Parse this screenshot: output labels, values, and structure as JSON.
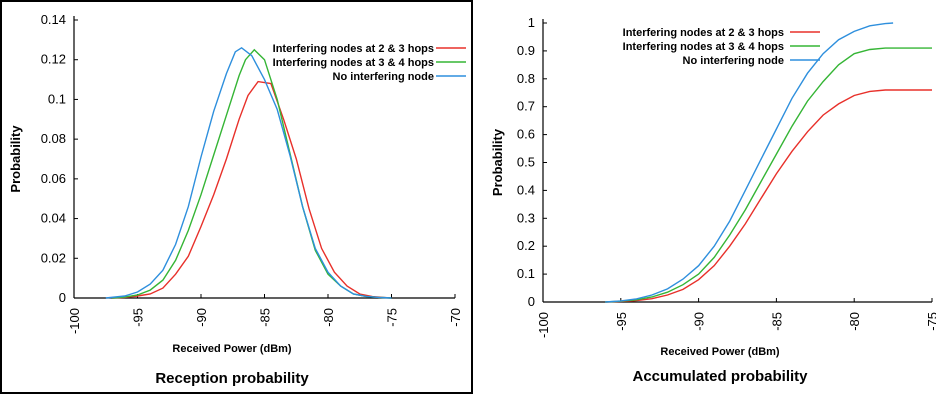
{
  "chart_data": [
    {
      "type": "line",
      "title": "",
      "caption": "Reception probability",
      "xlabel": "Received Power (dBm)",
      "ylabel": "Probability",
      "xlim": [
        -100,
        -70
      ],
      "ylim": [
        0,
        0.14
      ],
      "xticks": [
        -100,
        -95,
        -90,
        -85,
        -80,
        -75,
        -70
      ],
      "yticks": [
        0,
        0.02,
        0.04,
        0.06,
        0.08,
        0.1,
        0.12,
        0.14
      ],
      "ytick_labels": [
        "0",
        "0.02",
        "0.04",
        "0.06",
        "0.08",
        "0.1",
        "0.12",
        "0.14"
      ],
      "legend_position": "top-right",
      "grid": false,
      "series": [
        {
          "name": "Interfering nodes at 2 & 3 hops",
          "color": "#e8302a",
          "x": [
            -97,
            -96,
            -95,
            -94,
            -93,
            -92,
            -91,
            -90,
            -89,
            -88,
            -87,
            -86.3,
            -85.5,
            -84.5,
            -83.5,
            -82.5,
            -81.5,
            -80.5,
            -79.5,
            -78.5,
            -77.5,
            -76.5,
            -75.5,
            -75
          ],
          "y": [
            0,
            0.0003,
            0.001,
            0.002,
            0.005,
            0.012,
            0.021,
            0.036,
            0.052,
            0.07,
            0.09,
            0.102,
            0.109,
            0.108,
            0.09,
            0.07,
            0.045,
            0.025,
            0.013,
            0.006,
            0.002,
            0.0007,
            0.0002,
            0
          ]
        },
        {
          "name": "Interfering nodes at 3 & 4 hops",
          "color": "#35b535",
          "x": [
            -97,
            -96,
            -95,
            -94,
            -93,
            -92,
            -91,
            -90,
            -89,
            -88,
            -87,
            -86.5,
            -85.8,
            -85,
            -84,
            -83,
            -82,
            -81,
            -80,
            -79,
            -78,
            -77,
            -76,
            -75
          ],
          "y": [
            0,
            0.0005,
            0.0015,
            0.004,
            0.009,
            0.019,
            0.034,
            0.052,
            0.072,
            0.092,
            0.112,
            0.12,
            0.125,
            0.12,
            0.1,
            0.073,
            0.046,
            0.024,
            0.012,
            0.006,
            0.002,
            0.0008,
            0.0003,
            0
          ]
        },
        {
          "name": "No interfering node",
          "color": "#2e8fdd",
          "x": [
            -97.5,
            -96,
            -95,
            -94,
            -93,
            -92,
            -91,
            -90,
            -89,
            -88,
            -87.3,
            -86.8,
            -86,
            -85,
            -84,
            -83,
            -82,
            -81,
            -80,
            -79,
            -78,
            -77,
            -76,
            -75
          ],
          "y": [
            0,
            0.001,
            0.003,
            0.007,
            0.014,
            0.027,
            0.046,
            0.071,
            0.094,
            0.113,
            0.124,
            0.126,
            0.122,
            0.11,
            0.095,
            0.072,
            0.046,
            0.025,
            0.013,
            0.006,
            0.002,
            0.0008,
            0.0003,
            0
          ]
        }
      ]
    },
    {
      "type": "line",
      "title": "",
      "caption": "Accumulated probability",
      "xlabel": "Received Power (dBm)",
      "ylabel": "Probability",
      "xlim": [
        -100,
        -75
      ],
      "ylim": [
        0,
        1
      ],
      "xticks": [
        -100,
        -95,
        -90,
        -85,
        -80,
        -75
      ],
      "yticks": [
        0,
        0.1,
        0.2,
        0.3,
        0.4,
        0.5,
        0.6,
        0.7,
        0.8,
        0.9,
        1
      ],
      "ytick_labels": [
        "0",
        "0.1",
        "0.2",
        "0.3",
        "0.4",
        "0.5",
        "0.6",
        "0.7",
        "0.8",
        "0.9",
        "1"
      ],
      "legend_position": "top-left",
      "grid": false,
      "series": [
        {
          "name": "Interfering nodes at 2 & 3 hops",
          "color": "#e8302a",
          "x": [
            -96,
            -95,
            -94,
            -93,
            -92,
            -91,
            -90,
            -89,
            -88,
            -87,
            -86,
            -85,
            -84,
            -83,
            -82,
            -81,
            -80,
            -79,
            -78,
            -77,
            -76,
            -75
          ],
          "y": [
            0,
            0.002,
            0.005,
            0.012,
            0.025,
            0.045,
            0.08,
            0.13,
            0.2,
            0.28,
            0.37,
            0.46,
            0.54,
            0.61,
            0.67,
            0.71,
            0.74,
            0.755,
            0.76,
            0.76,
            0.76,
            0.76
          ]
        },
        {
          "name": "Interfering nodes at 3 & 4 hops",
          "color": "#35b535",
          "x": [
            -96,
            -95,
            -94,
            -93,
            -92,
            -91,
            -90,
            -89,
            -88,
            -87,
            -86,
            -85,
            -84,
            -83,
            -82,
            -81,
            -80,
            -79,
            -78,
            -77,
            -76,
            -75
          ],
          "y": [
            0,
            0.003,
            0.008,
            0.018,
            0.035,
            0.062,
            0.1,
            0.16,
            0.24,
            0.33,
            0.43,
            0.53,
            0.63,
            0.72,
            0.79,
            0.85,
            0.89,
            0.905,
            0.91,
            0.91,
            0.91,
            0.91
          ]
        },
        {
          "name": "No interfering node",
          "color": "#2e8fdd",
          "x": [
            -96,
            -95,
            -94,
            -93,
            -92,
            -91,
            -90,
            -89,
            -88,
            -87,
            -86,
            -85,
            -84,
            -83,
            -82,
            -81,
            -80,
            -79,
            -78,
            -77.5
          ],
          "y": [
            0,
            0.004,
            0.011,
            0.025,
            0.047,
            0.082,
            0.13,
            0.2,
            0.29,
            0.4,
            0.51,
            0.62,
            0.73,
            0.82,
            0.89,
            0.94,
            0.97,
            0.99,
            0.998,
            1.0
          ]
        }
      ]
    }
  ]
}
